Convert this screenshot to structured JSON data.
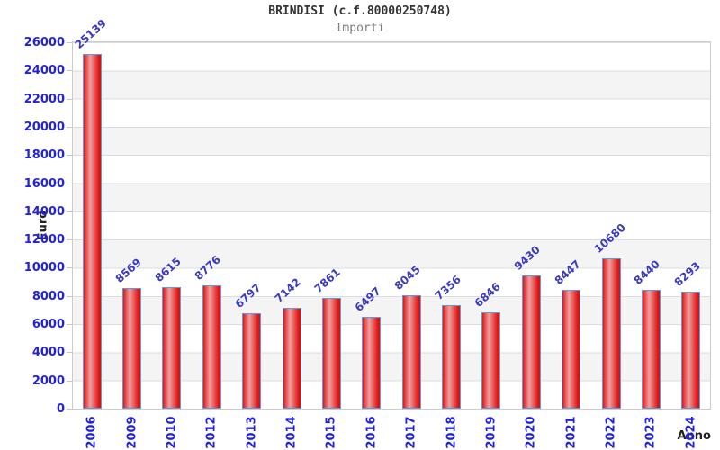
{
  "header": {
    "title": "BRINDISI (c.f.80000250748)",
    "subtitle": "Importi"
  },
  "chart_data": {
    "type": "bar",
    "title": "BRINDISI (c.f.80000250748)",
    "subtitle": "Importi",
    "xlabel": "Anno",
    "ylabel": "Euro",
    "categories": [
      "2006",
      "2009",
      "2010",
      "2012",
      "2013",
      "2014",
      "2015",
      "2016",
      "2017",
      "2018",
      "2019",
      "2020",
      "2021",
      "2022",
      "2023",
      "2024"
    ],
    "values": [
      25139,
      8569,
      8615,
      8776,
      6797,
      7142,
      7861,
      6497,
      8045,
      7356,
      6846,
      9430,
      8447,
      10680,
      8440,
      8293
    ],
    "ylim": [
      0,
      26000
    ],
    "ytick_step": 2000,
    "legend": "none",
    "grid": "horizontal-bands",
    "value_labels": "rotated-45-above-bars",
    "colors": {
      "bar_fill_edge": "#e21515",
      "bar_fill_center": "#ef9f9f",
      "bar_border": "#55a0e0",
      "axis_tick_label": "#2222dd",
      "value_label": "#3a3ac2",
      "band": "#f4f4f4",
      "gridline": "#dcdcdc",
      "plot_border": "#cccccc",
      "title": "#333333",
      "subtitle": "#7d7d7d"
    }
  }
}
